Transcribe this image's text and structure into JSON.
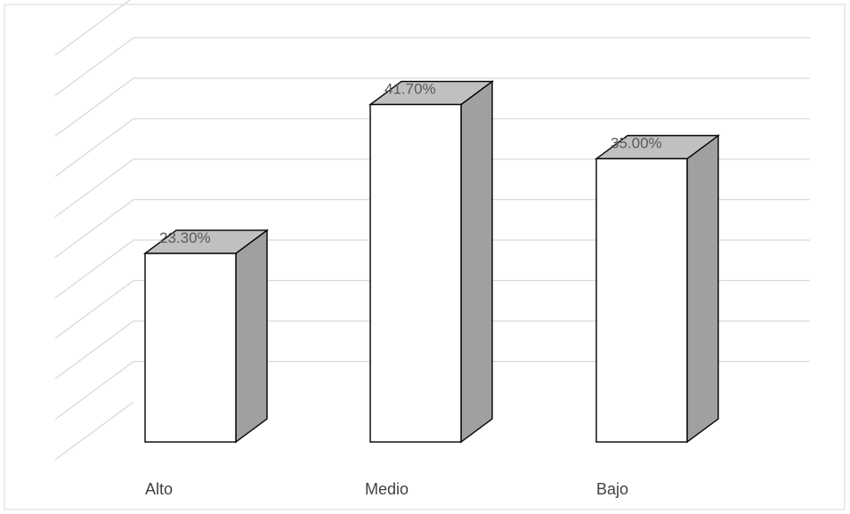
{
  "chart_data": {
    "type": "bar",
    "categories": [
      "Alto",
      "Medio",
      "Bajo"
    ],
    "values": [
      23.3,
      41.7,
      35.0
    ],
    "data_labels": [
      "23.30%",
      "41.70%",
      "35.00%"
    ],
    "title": "",
    "xlabel": "",
    "ylabel": "",
    "ylim": [
      0,
      50
    ],
    "grid": true,
    "legend": "none",
    "three_d": true,
    "colors": {
      "bar_front": "#ffffff",
      "bar_top": "#c0c0c0",
      "bar_side": "#a0a0a0",
      "bar_outline": "#000000",
      "gridline": "#d9d9d9",
      "frame": "#d9d9d9"
    }
  }
}
